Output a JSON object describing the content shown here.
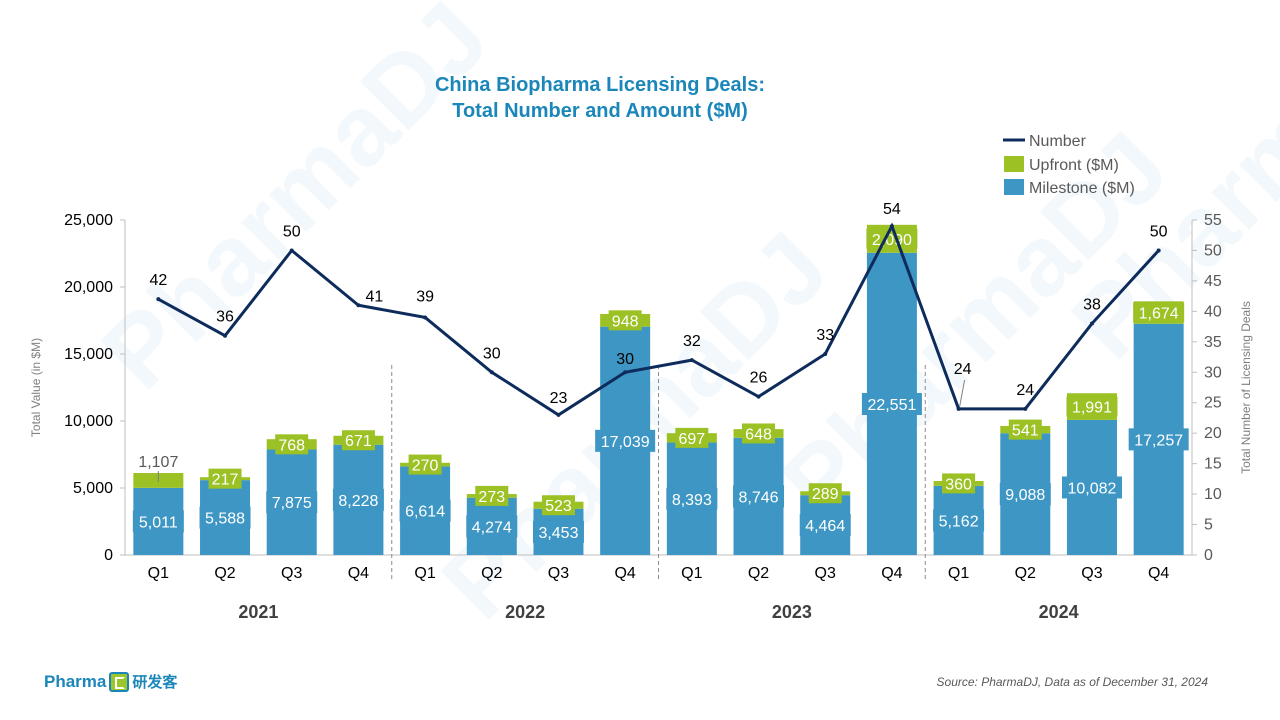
{
  "watermark_text": "PharmaDJ",
  "logo": {
    "text": "Pharma",
    "cn_text": "研发客"
  },
  "source_note": "Source: PharmaDJ, Data as of December 31, 2024",
  "colors": {
    "milestone": "#3d96c3",
    "upfront": "#9bc125",
    "number_line": "#0d2c5c",
    "title": "#1b86b9",
    "axis": "#595959"
  },
  "chart_data": {
    "type": "bar",
    "title": [
      "China Biopharma Licensing Deals:",
      "Total Number and Amount ($M)"
    ],
    "ylabel": "Total Value (in $M)",
    "y2label": "Total Number of Licensing Deals",
    "ylim": [
      0,
      25000
    ],
    "y2lim": [
      0,
      55
    ],
    "yticks": [
      "0",
      "5,000",
      "10,000",
      "15,000",
      "20,000",
      "25,000"
    ],
    "y2ticks": [
      "0",
      "5",
      "10",
      "15",
      "20",
      "25",
      "30",
      "35",
      "40",
      "45",
      "50",
      "55"
    ],
    "legend": {
      "position": "top-right",
      "entries": [
        "Number",
        "Upfront ($M)",
        "Milestone ($M)"
      ]
    },
    "categories": [
      "Q1",
      "Q2",
      "Q3",
      "Q4",
      "Q1",
      "Q2",
      "Q3",
      "Q4",
      "Q1",
      "Q2",
      "Q3",
      "Q4",
      "Q1",
      "Q2",
      "Q3",
      "Q4"
    ],
    "groups": [
      "2021",
      "2022",
      "2023",
      "2024"
    ],
    "series": [
      {
        "name": "Milestone ($M)",
        "type": "stacked-bar",
        "values": [
          5011,
          5588,
          7875,
          8228,
          6614,
          4274,
          3453,
          17039,
          8393,
          8746,
          4464,
          22551,
          5162,
          9088,
          10082,
          17257
        ],
        "labels": [
          "5,011",
          "5,588",
          "7,875",
          "8,228",
          "6,614",
          "4,274",
          "3,453",
          "17,039",
          "8,393",
          "8,746",
          "4,464",
          "22,551",
          "5,162",
          "9,088",
          "10,082",
          "17,257"
        ]
      },
      {
        "name": "Upfront ($M)",
        "type": "stacked-bar",
        "values": [
          1107,
          217,
          768,
          671,
          270,
          273,
          523,
          948,
          697,
          648,
          289,
          2090,
          360,
          541,
          1991,
          1674
        ],
        "labels": [
          "1,107",
          "217",
          "768",
          "671",
          "270",
          "273",
          "523",
          "948",
          "697",
          "648",
          "289",
          "2,090",
          "360",
          "541",
          "1,991",
          "1,674"
        ]
      },
      {
        "name": "Number",
        "type": "line",
        "axis": "right",
        "values": [
          42,
          36,
          50,
          41,
          39,
          30,
          23,
          30,
          32,
          26,
          33,
          54,
          24,
          24,
          38,
          50
        ],
        "labels": [
          "42",
          "36",
          "50",
          "41",
          "39",
          "30",
          "23",
          "30",
          "32",
          "26",
          "33",
          "54",
          "24",
          "24",
          "38",
          "50"
        ]
      }
    ]
  }
}
